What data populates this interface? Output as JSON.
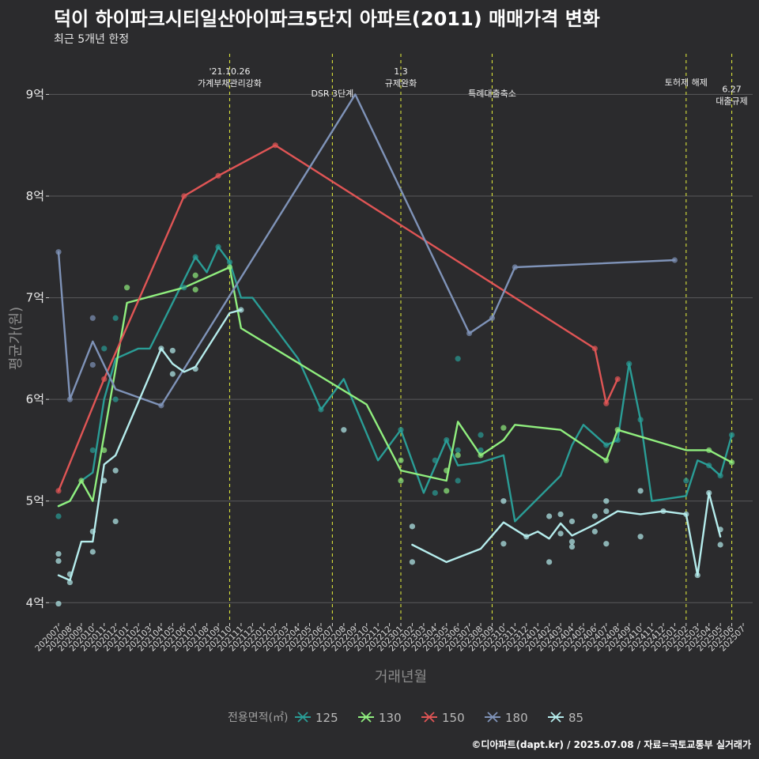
{
  "page": {
    "title": "덕이 하이파크시티일산아이파크5단지 아파트(2011) 매매가격 변화",
    "subtitle": "최근 5개년 한정",
    "caption": "©디아파트(dapt.kr) / 2025.07.08 / 자료=국토교통부 실거래가"
  },
  "chart_data": {
    "type": "line",
    "xlabel": "거래년월",
    "ylabel": "평균가(원)",
    "ylim": [
      3.8,
      9.4
    ],
    "yticks": [
      4,
      5,
      6,
      7,
      8,
      9
    ],
    "ytick_labels": [
      "4억",
      "5억",
      "6억",
      "7억",
      "8억",
      "9억"
    ],
    "x_months": [
      "202007",
      "202008",
      "202009",
      "202010",
      "202011",
      "202012",
      "202101",
      "202102",
      "202103",
      "202104",
      "202105",
      "202106",
      "202107",
      "202108",
      "202109",
      "202110",
      "202111",
      "202112",
      "202201",
      "202202",
      "202203",
      "202204",
      "202205",
      "202206",
      "202207",
      "202208",
      "202209",
      "202210",
      "202211",
      "202212",
      "202301",
      "202302",
      "202303",
      "202304",
      "202305",
      "202306",
      "202307",
      "202308",
      "202309",
      "202310",
      "202311",
      "202312",
      "202401",
      "202402",
      "202403",
      "202404",
      "202405",
      "202406",
      "202407",
      "202408",
      "202409",
      "202410",
      "202411",
      "202412",
      "202501",
      "202502",
      "202503",
      "202504",
      "202505",
      "202506",
      "202507"
    ],
    "legend_title": "전용면적(㎡)",
    "legend_position": "bottom",
    "grid": true,
    "annotations": [
      {
        "month": "202110",
        "lines": [
          "'21.10.26",
          "가계부채관리강화"
        ],
        "row": 0
      },
      {
        "month": "202207",
        "lines": [
          "DSR 3단계"
        ],
        "row": 2
      },
      {
        "month": "202301",
        "lines": [
          "1.3",
          "규제완화"
        ],
        "row": 0
      },
      {
        "month": "202309",
        "lines": [
          "특례대출축소"
        ],
        "row": 2
      },
      {
        "month": "202502",
        "lines": [
          "토허제 해제"
        ],
        "row": 1
      },
      {
        "month": "202506",
        "lines": [
          "6.27",
          "대출규제"
        ],
        "row": 1.6
      }
    ],
    "series": [
      {
        "name": "125",
        "color": "#2a9d96",
        "line": [
          [
            "202007",
            4.95
          ],
          [
            "202008",
            5.0
          ],
          [
            "202009",
            5.2
          ],
          [
            "202010",
            5.28
          ],
          [
            "202011",
            6.0
          ],
          [
            "202012",
            6.4
          ],
          [
            "202102",
            6.5
          ],
          [
            "202103",
            6.5
          ],
          [
            "202107",
            7.4
          ],
          [
            "202108",
            7.25
          ],
          [
            "202109",
            7.5
          ],
          [
            "202110",
            7.35
          ],
          [
            "202111",
            7.0
          ],
          [
            "202112",
            7.0
          ],
          [
            "202204",
            6.4
          ],
          [
            "202206",
            5.9
          ],
          [
            "202208",
            6.2
          ],
          [
            "202211",
            5.4
          ],
          [
            "202301",
            5.7
          ],
          [
            "202303",
            5.08
          ],
          [
            "202305",
            5.6
          ],
          [
            "202306",
            5.35
          ],
          [
            "202308",
            5.38
          ],
          [
            "202310",
            5.45
          ],
          [
            "202311",
            4.8
          ],
          [
            "202403",
            5.25
          ],
          [
            "202404",
            5.55
          ],
          [
            "202405",
            5.75
          ],
          [
            "202407",
            5.55
          ],
          [
            "202408",
            5.6
          ],
          [
            "202409",
            6.35
          ],
          [
            "202410",
            5.8
          ],
          [
            "202411",
            5.0
          ],
          [
            "202502",
            5.05
          ],
          [
            "202503",
            5.4
          ],
          [
            "202504",
            5.35
          ],
          [
            "202505",
            5.25
          ],
          [
            "202506",
            5.65
          ]
        ],
        "points": [
          [
            "202007",
            4.85
          ],
          [
            "202010",
            5.5
          ],
          [
            "202011",
            6.5
          ],
          [
            "202012",
            6.0
          ],
          [
            "202012",
            6.8
          ],
          [
            "202106",
            7.1
          ],
          [
            "202107",
            7.4
          ],
          [
            "202109",
            7.5
          ],
          [
            "202110",
            7.35
          ],
          [
            "202206",
            5.9
          ],
          [
            "202301",
            5.7
          ],
          [
            "202304",
            5.08
          ],
          [
            "202304",
            5.4
          ],
          [
            "202305",
            5.6
          ],
          [
            "202306",
            5.5
          ],
          [
            "202306",
            5.2
          ],
          [
            "202306",
            6.4
          ],
          [
            "202308",
            5.65
          ],
          [
            "202308",
            5.5
          ],
          [
            "202407",
            5.55
          ],
          [
            "202408",
            5.6
          ],
          [
            "202409",
            6.35
          ],
          [
            "202410",
            5.8
          ],
          [
            "202502",
            5.2
          ],
          [
            "202504",
            5.35
          ],
          [
            "202505",
            5.25
          ],
          [
            "202506",
            5.65
          ]
        ]
      },
      {
        "name": "130",
        "color": "#90ee7e",
        "line": [
          [
            "202007",
            4.95
          ],
          [
            "202008",
            5.0
          ],
          [
            "202009",
            5.2
          ],
          [
            "202010",
            5.0
          ],
          [
            "202101",
            6.95
          ],
          [
            "202106",
            7.1
          ],
          [
            "202110",
            7.3
          ],
          [
            "202111",
            6.7
          ],
          [
            "202210",
            5.95
          ],
          [
            "202301",
            5.3
          ],
          [
            "202305",
            5.2
          ],
          [
            "202306",
            5.78
          ],
          [
            "202308",
            5.45
          ],
          [
            "202310",
            5.6
          ],
          [
            "202311",
            5.75
          ],
          [
            "202403",
            5.7
          ],
          [
            "202407",
            5.4
          ],
          [
            "202408",
            5.7
          ],
          [
            "202502",
            5.5
          ],
          [
            "202504",
            5.5
          ],
          [
            "202506",
            5.38
          ]
        ],
        "points": [
          [
            "202009",
            5.2
          ],
          [
            "202011",
            5.5
          ],
          [
            "202101",
            7.1
          ],
          [
            "202107",
            7.08
          ],
          [
            "202107",
            7.22
          ],
          [
            "202110",
            7.3
          ],
          [
            "202301",
            5.4
          ],
          [
            "202301",
            5.2
          ],
          [
            "202305",
            5.3
          ],
          [
            "202305",
            5.1
          ],
          [
            "202306",
            5.45
          ],
          [
            "202308",
            5.45
          ],
          [
            "202310",
            5.72
          ],
          [
            "202407",
            5.4
          ],
          [
            "202408",
            5.7
          ],
          [
            "202504",
            5.5
          ],
          [
            "202506",
            5.38
          ]
        ]
      },
      {
        "name": "150",
        "color": "#e05555",
        "line": [
          [
            "202007",
            5.1
          ],
          [
            "202011",
            6.2
          ],
          [
            "202106",
            8.0
          ],
          [
            "202109",
            8.2
          ],
          [
            "202202",
            8.5
          ],
          [
            "202406",
            6.5
          ],
          [
            "202407",
            5.96
          ],
          [
            "202408",
            6.2
          ]
        ],
        "points": [
          [
            "202007",
            5.1
          ],
          [
            "202011",
            6.2
          ],
          [
            "202106",
            8.0
          ],
          [
            "202109",
            8.2
          ],
          [
            "202202",
            8.5
          ],
          [
            "202406",
            6.5
          ],
          [
            "202407",
            5.96
          ],
          [
            "202408",
            6.2
          ]
        ]
      },
      {
        "name": "180",
        "color": "#7f93b8",
        "line": [
          [
            "202007",
            7.45
          ],
          [
            "202008",
            6.0
          ],
          [
            "202010",
            6.57
          ],
          [
            "202012",
            6.1
          ],
          [
            "202104",
            5.94
          ],
          [
            "202106",
            6.3
          ],
          [
            "202209",
            9.0
          ],
          [
            "202307",
            6.65
          ],
          [
            "202309",
            6.8
          ],
          [
            "202311",
            7.3
          ],
          [
            "202501",
            7.37
          ]
        ],
        "points": [
          [
            "202007",
            7.45
          ],
          [
            "202008",
            6.0
          ],
          [
            "202010",
            6.8
          ],
          [
            "202010",
            6.34
          ],
          [
            "202104",
            5.94
          ],
          [
            "202307",
            6.65
          ],
          [
            "202309",
            6.8
          ],
          [
            "202311",
            7.3
          ],
          [
            "202501",
            7.37
          ]
        ]
      },
      {
        "name": "85",
        "color": "#b5ecec",
        "line": [
          [
            "202007",
            4.27
          ],
          [
            "202008",
            4.22
          ],
          [
            "202009",
            4.6
          ],
          [
            "202010",
            4.6
          ],
          [
            "202011",
            5.36
          ],
          [
            "202012",
            5.45
          ],
          [
            "202104",
            6.5
          ],
          [
            "202105",
            6.35
          ],
          [
            "202106",
            6.27
          ],
          [
            "202107",
            6.32
          ],
          [
            "202110",
            6.85
          ],
          [
            "202111",
            6.88
          ]
        ],
        "line2": [
          [
            "202302",
            4.57
          ],
          [
            "202305",
            4.4
          ],
          [
            "202308",
            4.53
          ],
          [
            "202310",
            4.79
          ],
          [
            "202312",
            4.65
          ],
          [
            "202401",
            4.7
          ],
          [
            "202402",
            4.63
          ],
          [
            "202403",
            4.78
          ],
          [
            "202404",
            4.66
          ],
          [
            "202406",
            4.77
          ],
          [
            "202408",
            4.9
          ],
          [
            "202410",
            4.87
          ],
          [
            "202412",
            4.9
          ],
          [
            "202502",
            4.87
          ],
          [
            "202503",
            4.27
          ],
          [
            "202504",
            5.08
          ],
          [
            "202505",
            4.65
          ]
        ],
        "points": [
          [
            "202007",
            4.48
          ],
          [
            "202007",
            4.41
          ],
          [
            "202007",
            3.99
          ],
          [
            "202008",
            4.28
          ],
          [
            "202008",
            4.2
          ],
          [
            "202010",
            4.7
          ],
          [
            "202010",
            4.5
          ],
          [
            "202011",
            5.2
          ],
          [
            "202012",
            5.3
          ],
          [
            "202012",
            4.8
          ],
          [
            "202104",
            6.5
          ],
          [
            "202105",
            6.48
          ],
          [
            "202105",
            6.25
          ],
          [
            "202107",
            6.3
          ],
          [
            "202111",
            6.88
          ],
          [
            "202208",
            5.7
          ],
          [
            "202302",
            4.75
          ],
          [
            "202302",
            4.4
          ],
          [
            "202310",
            5.0
          ],
          [
            "202310",
            4.58
          ],
          [
            "202312",
            4.65
          ],
          [
            "202402",
            4.85
          ],
          [
            "202402",
            4.4
          ],
          [
            "202403",
            4.87
          ],
          [
            "202403",
            4.68
          ],
          [
            "202404",
            4.8
          ],
          [
            "202404",
            4.6
          ],
          [
            "202404",
            4.55
          ],
          [
            "202406",
            4.85
          ],
          [
            "202406",
            4.7
          ],
          [
            "202407",
            5.0
          ],
          [
            "202407",
            4.9
          ],
          [
            "202407",
            4.58
          ],
          [
            "202410",
            4.65
          ],
          [
            "202410",
            5.1
          ],
          [
            "202412",
            4.9
          ],
          [
            "202502",
            4.87
          ],
          [
            "202503",
            4.27
          ],
          [
            "202504",
            5.08
          ],
          [
            "202505",
            4.72
          ],
          [
            "202505",
            4.57
          ]
        ]
      }
    ]
  }
}
